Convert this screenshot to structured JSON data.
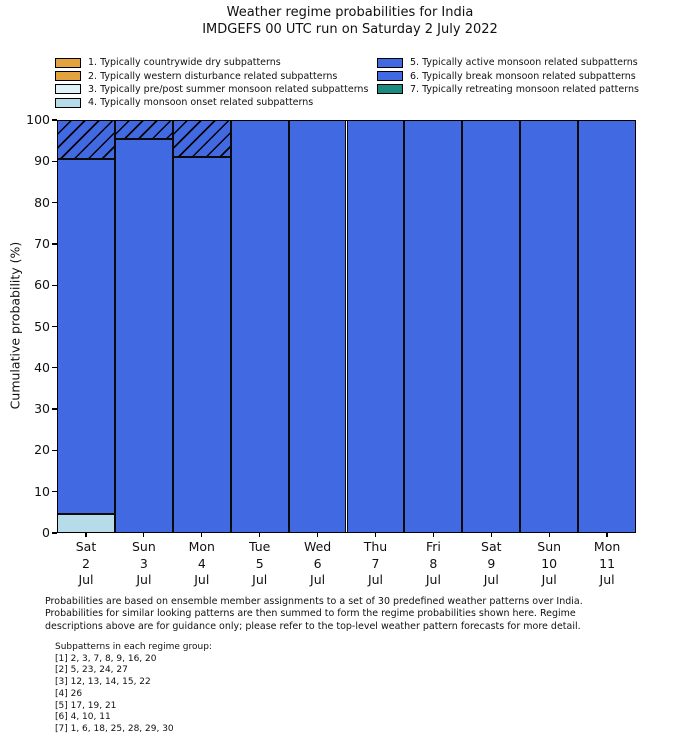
{
  "title": {
    "line1": "Weather regime probabilities for India",
    "line2": "IMDGEFS 00 UTC run on Saturday 2 July 2022"
  },
  "legend": {
    "items": [
      {
        "id": 1,
        "label": "1. Typically countrywide dry subpatterns",
        "color": "#e2a23d",
        "hatch": false
      },
      {
        "id": 2,
        "label": "2. Typically western disturbance related subpatterns",
        "color": "#e2a23d",
        "hatch": true
      },
      {
        "id": 3,
        "label": "3. Typically pre/post summer monsoon related subpatterns",
        "color": "#dff2f9",
        "hatch": false
      },
      {
        "id": 4,
        "label": "4. Typically monsoon onset related subpatterns",
        "color": "#b5dce8",
        "hatch": false
      },
      {
        "id": 5,
        "label": "5. Typically active monsoon related subpatterns",
        "color": "#4169e1",
        "hatch": false
      },
      {
        "id": 6,
        "label": "6. Typically break monsoon related subpatterns",
        "color": "#4169e1",
        "hatch": true
      },
      {
        "id": 7,
        "label": "7. Typically retreating monsoon related patterns",
        "color": "#198c7f",
        "hatch": false
      }
    ]
  },
  "chart_data": {
    "type": "bar",
    "stacked": true,
    "stack_order": "bottom-to-top",
    "title": "Weather regime probabilities for India — IMDGEFS 00 UTC run on Saturday 2 July 2022",
    "xlabel": "",
    "ylabel": "Cumulative probability (%)",
    "ylim": [
      0,
      100
    ],
    "yticks": [
      0,
      10,
      20,
      30,
      40,
      50,
      60,
      70,
      80,
      90,
      100
    ],
    "grid": false,
    "legend_position": "above-plot, two columns",
    "bar_edge_color": "#0a0a0a",
    "categories": [
      {
        "day": "Sat",
        "num": "2",
        "mon": "Jul"
      },
      {
        "day": "Sun",
        "num": "3",
        "mon": "Jul"
      },
      {
        "day": "Mon",
        "num": "4",
        "mon": "Jul"
      },
      {
        "day": "Tue",
        "num": "5",
        "mon": "Jul"
      },
      {
        "day": "Wed",
        "num": "6",
        "mon": "Jul"
      },
      {
        "day": "Thu",
        "num": "7",
        "mon": "Jul"
      },
      {
        "day": "Fri",
        "num": "8",
        "mon": "Jul"
      },
      {
        "day": "Sat",
        "num": "9",
        "mon": "Jul"
      },
      {
        "day": "Sun",
        "num": "10",
        "mon": "Jul"
      },
      {
        "day": "Mon",
        "num": "11",
        "mon": "Jul"
      }
    ],
    "series": [
      {
        "regime": 4,
        "name": "4. Typically monsoon onset related subpatterns",
        "color": "#b5dce8",
        "hatch": false,
        "values": [
          4.5,
          0,
          0,
          0,
          0,
          0,
          0,
          0,
          0,
          0
        ]
      },
      {
        "regime": 5,
        "name": "5. Typically active monsoon related subpatterns",
        "color": "#4169e1",
        "hatch": false,
        "values": [
          86,
          95.5,
          91,
          100,
          100,
          100,
          100,
          100,
          100,
          100
        ]
      },
      {
        "regime": 6,
        "name": "6. Typically break monsoon related subpatterns",
        "color": "#4169e1",
        "hatch": true,
        "values": [
          9.5,
          4.5,
          9,
          0,
          0,
          0,
          0,
          0,
          0,
          0
        ]
      }
    ]
  },
  "footnote": {
    "lines": [
      "Probabilities are based on ensemble member assignments to a set of 30 predefined weather patterns over India.",
      "Probabilities for similar looking patterns are then summed to form the regime probabilities shown here. Regime",
      "descriptions above are for guidance only; please refer to the top-level weather pattern forecasts for more detail."
    ]
  },
  "subpatterns": {
    "heading": "Subpatterns in each regime group:",
    "groups": [
      "[1] 2, 3, 7, 8, 9, 16, 20",
      "[2] 5, 23, 24, 27",
      "[3] 12, 13, 14, 15, 22",
      "[4] 26",
      "[5] 17, 19, 21",
      "[6] 4, 10, 11",
      "[7] 1, 6, 18, 25, 28, 29, 30"
    ]
  }
}
